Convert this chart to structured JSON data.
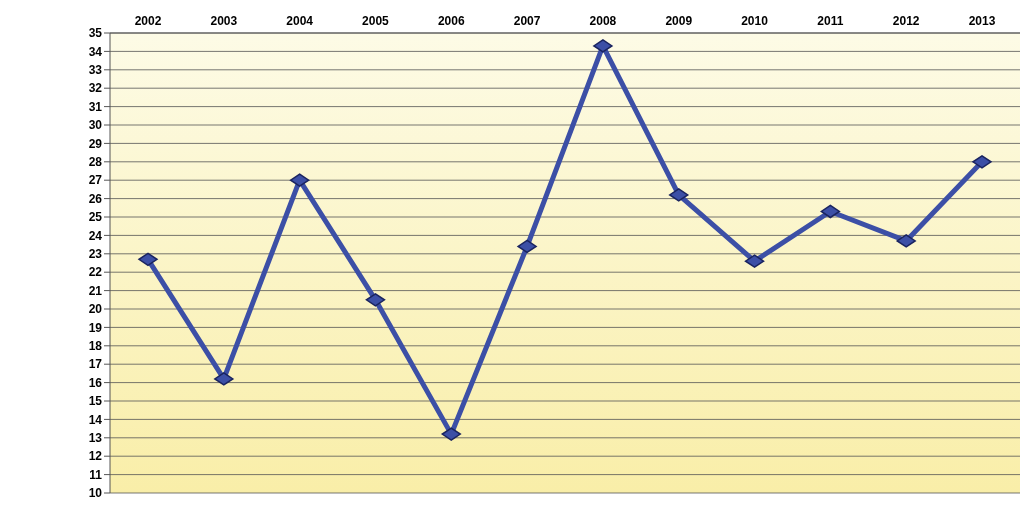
{
  "chart_data": {
    "type": "line",
    "categories": [
      "2002",
      "2003",
      "2004",
      "2005",
      "2006",
      "2007",
      "2008",
      "2009",
      "2010",
      "2011",
      "2012",
      "2013"
    ],
    "series": [
      {
        "color": "#3c4fa6",
        "values": [
          22.7,
          16.2,
          27.0,
          20.5,
          13.2,
          23.4,
          34.3,
          26.2,
          22.6,
          25.3,
          23.7,
          28.0
        ]
      }
    ],
    "ylim": [
      10,
      35
    ],
    "yticks": [
      10,
      11,
      12,
      13,
      14,
      15,
      16,
      17,
      18,
      19,
      20,
      21,
      22,
      23,
      24,
      25,
      26,
      27,
      28,
      29,
      30,
      31,
      32,
      33,
      34,
      35
    ],
    "grid": "y",
    "marker": "diamond",
    "line_style": "solid"
  }
}
